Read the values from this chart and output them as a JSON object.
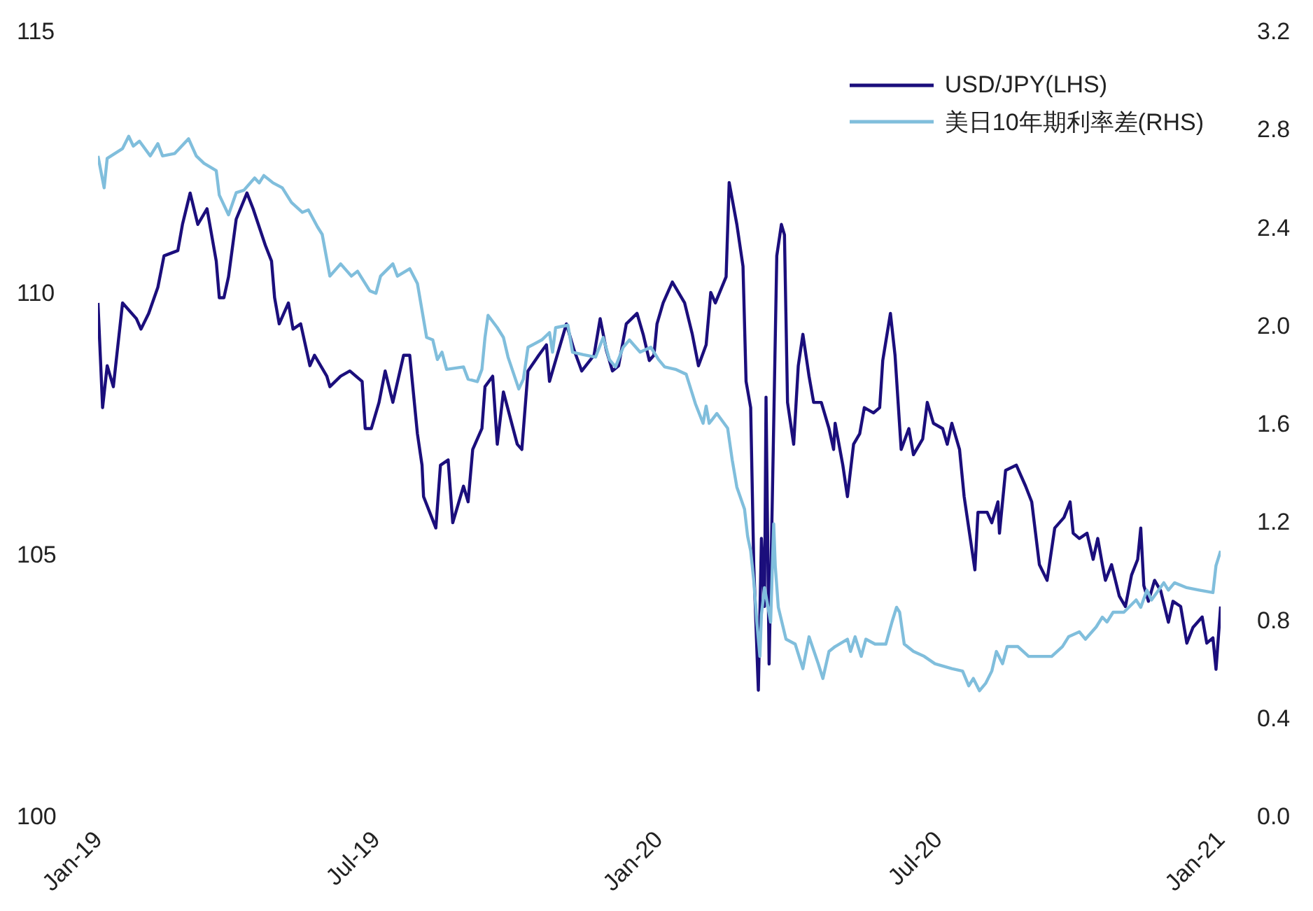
{
  "chart_data": {
    "type": "line",
    "legend": "top right",
    "line_style": "solid",
    "marker": "none",
    "grid": false,
    "xlim": [
      "2019-01-01",
      "2021-01-01"
    ],
    "xticks": [
      {
        "value": "2019-01-01",
        "label": "Jan-19"
      },
      {
        "value": "2019-07-01",
        "label": "Jul-19"
      },
      {
        "value": "2020-01-01",
        "label": "Jan-20"
      },
      {
        "value": "2020-07-01",
        "label": "Jul-20"
      },
      {
        "value": "2021-01-01",
        "label": "Jan-21"
      }
    ],
    "ylim": [
      100,
      115
    ],
    "yticks": [
      100,
      105,
      110,
      115
    ],
    "y2lim": [
      0,
      3.2
    ],
    "y2ticks": [
      {
        "value": 0,
        "label": "0.0"
      },
      {
        "value": 0.4,
        "label": "0.4"
      },
      {
        "value": 0.8,
        "label": "0.8"
      },
      {
        "value": 1.2,
        "label": "1.2"
      },
      {
        "value": 1.6,
        "label": "1.6"
      },
      {
        "value": 2.0,
        "label": "2.0"
      },
      {
        "value": 2.4,
        "label": "2.4"
      },
      {
        "value": 2.8,
        "label": "2.8"
      },
      {
        "value": 3.2,
        "label": "3.2"
      }
    ],
    "series": [
      {
        "name": "USD/JPY(LHS)",
        "color": "#1b0e7c",
        "x": [
          "2019-01-01",
          "2019-01-04",
          "2019-01-07",
          "2019-01-11",
          "2019-01-17",
          "2019-01-26",
          "2019-01-29",
          "2019-02-03",
          "2019-02-09",
          "2019-02-13",
          "2019-02-22",
          "2019-02-25",
          "2019-03-02",
          "2019-03-07",
          "2019-03-13",
          "2019-03-19",
          "2019-03-21",
          "2019-03-24",
          "2019-03-27",
          "2019-04-01",
          "2019-04-08",
          "2019-04-12",
          "2019-04-20",
          "2019-04-24",
          "2019-04-26",
          "2019-04-29",
          "2019-05-05",
          "2019-05-08",
          "2019-05-13",
          "2019-05-19",
          "2019-05-22",
          "2019-05-30",
          "2019-06-01",
          "2019-06-08",
          "2019-06-14",
          "2019-06-22",
          "2019-06-24",
          "2019-06-28",
          "2019-07-03",
          "2019-07-07",
          "2019-07-12",
          "2019-07-19",
          "2019-07-23",
          "2019-07-28",
          "2019-07-31",
          "2019-08-01",
          "2019-08-05",
          "2019-08-09",
          "2019-08-12",
          "2019-08-17",
          "2019-08-20",
          "2019-08-27",
          "2019-08-30",
          "2019-09-02",
          "2019-09-08",
          "2019-09-10",
          "2019-09-15",
          "2019-09-18",
          "2019-09-22",
          "2019-10-01",
          "2019-10-04",
          "2019-10-08",
          "2019-10-15",
          "2019-10-20",
          "2019-10-22",
          "2019-10-29",
          "2019-11-02",
          "2019-11-07",
          "2019-11-12",
          "2019-11-20",
          "2019-11-24",
          "2019-11-28",
          "2019-12-02",
          "2019-12-06",
          "2019-12-11",
          "2019-12-18",
          "2019-12-22",
          "2019-12-26",
          "2019-12-29",
          "2019-12-31",
          "2020-01-04",
          "2020-01-10",
          "2020-01-18",
          "2020-01-23",
          "2020-01-27",
          "2020-02-01",
          "2020-02-04",
          "2020-02-07",
          "2020-02-14",
          "2020-02-16",
          "2020-02-21",
          "2020-02-25",
          "2020-02-27",
          "2020-03-01",
          "2020-03-03",
          "2020-03-06",
          "2020-03-08",
          "2020-03-10",
          "2020-03-11",
          "2020-03-13",
          "2020-03-15",
          "2020-03-18",
          "2020-03-21",
          "2020-03-23",
          "2020-03-25",
          "2020-03-29",
          "2020-04-01",
          "2020-04-04",
          "2020-04-08",
          "2020-04-11",
          "2020-04-16",
          "2020-04-21",
          "2020-04-24",
          "2020-04-25",
          "2020-04-30",
          "2020-05-03",
          "2020-05-07",
          "2020-05-11",
          "2020-05-14",
          "2020-05-20",
          "2020-05-24",
          "2020-05-26",
          "2020-05-31",
          "2020-06-03",
          "2020-06-07",
          "2020-06-12",
          "2020-06-15",
          "2020-06-21",
          "2020-06-24",
          "2020-06-28",
          "2020-07-04",
          "2020-07-07",
          "2020-07-10",
          "2020-07-15",
          "2020-07-18",
          "2020-07-25",
          "2020-07-27",
          "2020-08-02",
          "2020-08-05",
          "2020-08-09",
          "2020-08-10",
          "2020-08-14",
          "2020-08-21",
          "2020-08-27",
          "2020-08-31",
          "2020-09-05",
          "2020-09-10",
          "2020-09-15",
          "2020-09-21",
          "2020-09-25",
          "2020-09-27",
          "2020-10-01",
          "2020-10-06",
          "2020-10-10",
          "2020-10-13",
          "2020-10-16",
          "2020-10-18",
          "2020-10-22",
          "2020-10-27",
          "2020-10-31",
          "2020-11-04",
          "2020-11-08",
          "2020-11-10",
          "2020-11-12",
          "2020-11-15",
          "2020-11-19",
          "2020-11-23",
          "2020-11-28",
          "2020-12-01",
          "2020-12-06",
          "2020-12-10",
          "2020-12-14",
          "2020-12-20",
          "2020-12-23",
          "2020-12-27",
          "2020-12-29",
          "2020-12-31",
          "2021-01-01"
        ],
        "values": [
          109.8,
          107.8,
          108.6,
          108.2,
          109.8,
          109.5,
          109.3,
          109.6,
          110.1,
          110.7,
          110.8,
          111.3,
          111.9,
          111.3,
          111.6,
          110.6,
          109.9,
          109.9,
          110.3,
          111.4,
          111.9,
          111.6,
          110.9,
          110.6,
          109.9,
          109.4,
          109.8,
          109.3,
          109.4,
          108.6,
          108.8,
          108.4,
          108.2,
          108.4,
          108.5,
          108.3,
          107.4,
          107.4,
          107.9,
          108.5,
          107.9,
          108.8,
          108.8,
          107.3,
          106.7,
          106.1,
          105.8,
          105.5,
          106.7,
          106.8,
          105.6,
          106.3,
          106.0,
          107.0,
          107.4,
          108.2,
          108.4,
          107.1,
          108.1,
          107.1,
          107.0,
          108.5,
          108.8,
          109.0,
          108.3,
          109.0,
          109.4,
          108.9,
          108.5,
          108.8,
          109.5,
          108.9,
          108.5,
          108.6,
          109.4,
          109.6,
          109.2,
          108.7,
          108.8,
          109.4,
          109.8,
          110.2,
          109.8,
          109.2,
          108.6,
          109.0,
          110.0,
          109.8,
          110.3,
          112.1,
          111.3,
          110.5,
          108.3,
          107.8,
          104.8,
          102.4,
          105.3,
          104.0,
          108.0,
          102.9,
          105.9,
          110.7,
          111.3,
          111.1,
          107.9,
          107.1,
          108.6,
          109.2,
          108.4,
          107.9,
          107.9,
          107.4,
          107.0,
          107.5,
          106.7,
          106.1,
          107.1,
          107.3,
          107.8,
          107.7,
          107.8,
          108.7,
          109.6,
          108.8,
          107.0,
          107.4,
          106.9,
          107.2,
          107.9,
          107.5,
          107.4,
          107.1,
          107.5,
          107.0,
          106.1,
          104.7,
          105.8,
          105.8,
          105.6,
          106.0,
          105.4,
          106.6,
          106.7,
          106.3,
          106.0,
          104.8,
          104.5,
          105.5,
          105.7,
          106.0,
          105.4,
          105.3,
          105.4,
          104.9,
          105.3,
          104.8,
          104.5,
          104.8,
          104.2,
          104.0,
          104.6,
          104.9,
          105.5,
          104.4,
          104.1,
          104.5,
          104.3,
          103.7,
          104.1,
          104.0,
          103.3,
          103.6,
          103.8,
          103.3,
          103.4,
          102.8,
          103.6,
          104.0
        ]
      },
      {
        "name": "美日10年期利率差(RHS)",
        "color": "#80bedc",
        "axis": "y2",
        "x": [
          "2019-01-01",
          "2019-01-05",
          "2019-01-07",
          "2019-01-17",
          "2019-01-21",
          "2019-01-24",
          "2019-01-28",
          "2019-02-04",
          "2019-02-09",
          "2019-02-12",
          "2019-02-20",
          "2019-03-01",
          "2019-03-06",
          "2019-03-11",
          "2019-03-19",
          "2019-03-21",
          "2019-03-27",
          "2019-04-01",
          "2019-04-06",
          "2019-04-13",
          "2019-04-16",
          "2019-04-19",
          "2019-04-25",
          "2019-05-01",
          "2019-05-07",
          "2019-05-14",
          "2019-05-18",
          "2019-05-24",
          "2019-05-27",
          "2019-06-01",
          "2019-06-08",
          "2019-06-15",
          "2019-06-19",
          "2019-06-27",
          "2019-07-01",
          "2019-07-04",
          "2019-07-12",
          "2019-07-15",
          "2019-07-23",
          "2019-07-28",
          "2019-07-31",
          "2019-08-03",
          "2019-08-07",
          "2019-08-10",
          "2019-08-13",
          "2019-08-16",
          "2019-08-27",
          "2019-08-30",
          "2019-09-05",
          "2019-09-08",
          "2019-09-10",
          "2019-09-12",
          "2019-09-18",
          "2019-09-22",
          "2019-09-25",
          "2019-10-02",
          "2019-10-05",
          "2019-10-08",
          "2019-10-17",
          "2019-10-22",
          "2019-10-24",
          "2019-10-26",
          "2019-11-03",
          "2019-11-06",
          "2019-11-13",
          "2019-11-21",
          "2019-11-26",
          "2019-11-30",
          "2019-12-04",
          "2019-12-09",
          "2019-12-13",
          "2019-12-20",
          "2019-12-27",
          "2020-01-01",
          "2020-01-05",
          "2020-01-12",
          "2020-01-19",
          "2020-01-25",
          "2020-01-30",
          "2020-02-01",
          "2020-02-03",
          "2020-02-08",
          "2020-02-15",
          "2020-02-18",
          "2020-02-21",
          "2020-02-26",
          "2020-02-28",
          "2020-03-01",
          "2020-03-03",
          "2020-03-05",
          "2020-03-07",
          "2020-03-08",
          "2020-03-10",
          "2020-03-14",
          "2020-03-16",
          "2020-03-17",
          "2020-03-19",
          "2020-03-24",
          "2020-03-30",
          "2020-04-04",
          "2020-04-08",
          "2020-04-14",
          "2020-04-17",
          "2020-04-21",
          "2020-04-25",
          "2020-05-03",
          "2020-05-05",
          "2020-05-08",
          "2020-05-12",
          "2020-05-15",
          "2020-05-21",
          "2020-05-28",
          "2020-06-01",
          "2020-06-04",
          "2020-06-06",
          "2020-06-09",
          "2020-06-15",
          "2020-06-22",
          "2020-06-29",
          "2020-07-10",
          "2020-07-17",
          "2020-07-21",
          "2020-07-24",
          "2020-07-28",
          "2020-08-01",
          "2020-08-05",
          "2020-08-08",
          "2020-08-12",
          "2020-08-15",
          "2020-08-22",
          "2020-08-29",
          "2020-09-06",
          "2020-09-13",
          "2020-09-20",
          "2020-09-24",
          "2020-10-01",
          "2020-10-05",
          "2020-10-12",
          "2020-10-16",
          "2020-10-19",
          "2020-10-23",
          "2020-10-30",
          "2020-11-07",
          "2020-11-10",
          "2020-11-14",
          "2020-11-17",
          "2020-11-25",
          "2020-11-28",
          "2020-12-02",
          "2020-12-10",
          "2020-12-18",
          "2020-12-27",
          "2020-12-29",
          "2021-01-01"
        ],
        "values": [
          2.69,
          2.56,
          2.68,
          2.72,
          2.77,
          2.73,
          2.75,
          2.69,
          2.74,
          2.69,
          2.7,
          2.76,
          2.69,
          2.66,
          2.63,
          2.53,
          2.45,
          2.54,
          2.55,
          2.6,
          2.58,
          2.61,
          2.58,
          2.56,
          2.5,
          2.46,
          2.47,
          2.4,
          2.37,
          2.2,
          2.25,
          2.2,
          2.22,
          2.14,
          2.13,
          2.2,
          2.25,
          2.2,
          2.23,
          2.17,
          2.06,
          1.95,
          1.94,
          1.86,
          1.89,
          1.82,
          1.83,
          1.78,
          1.77,
          1.82,
          1.95,
          2.04,
          1.99,
          1.95,
          1.87,
          1.74,
          1.78,
          1.91,
          1.94,
          1.97,
          1.89,
          1.99,
          2.0,
          1.89,
          1.88,
          1.87,
          1.95,
          1.86,
          1.83,
          1.91,
          1.94,
          1.89,
          1.91,
          1.86,
          1.83,
          1.82,
          1.8,
          1.68,
          1.6,
          1.67,
          1.6,
          1.64,
          1.58,
          1.45,
          1.34,
          1.25,
          1.14,
          1.08,
          0.96,
          0.79,
          0.65,
          0.82,
          0.93,
          0.79,
          1.19,
          1.02,
          0.85,
          0.72,
          0.7,
          0.6,
          0.73,
          0.62,
          0.56,
          0.67,
          0.69,
          0.72,
          0.67,
          0.73,
          0.65,
          0.72,
          0.7,
          0.7,
          0.79,
          0.85,
          0.83,
          0.7,
          0.67,
          0.65,
          0.62,
          0.6,
          0.59,
          0.53,
          0.56,
          0.51,
          0.54,
          0.59,
          0.67,
          0.62,
          0.69,
          0.69,
          0.65,
          0.65,
          0.65,
          0.69,
          0.73,
          0.75,
          0.72,
          0.77,
          0.81,
          0.79,
          0.83,
          0.83,
          0.88,
          0.85,
          0.92,
          0.88,
          0.95,
          0.92,
          0.95,
          0.93,
          0.92,
          0.91,
          1.02,
          1.08
        ]
      }
    ]
  }
}
